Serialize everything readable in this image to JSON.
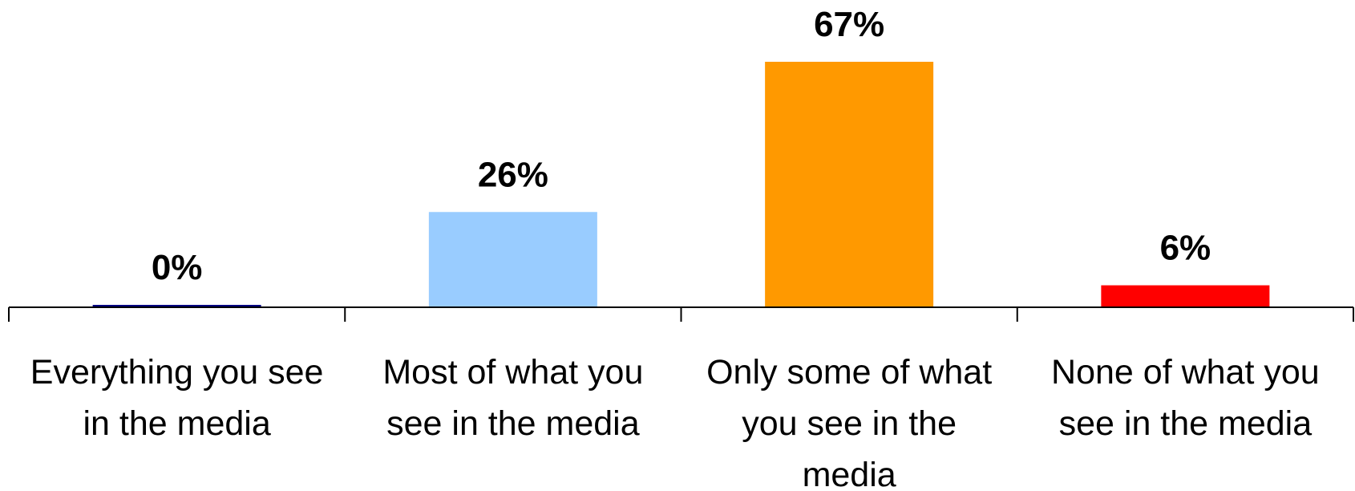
{
  "chart_data": {
    "type": "bar",
    "categories": [
      [
        "Everything you see",
        "in the media"
      ],
      [
        "Most of what you",
        "see in the media"
      ],
      [
        "Only some of what",
        "you see in the",
        "media"
      ],
      [
        "None of what you",
        "see in the media"
      ]
    ],
    "values": [
      0,
      26,
      67,
      6
    ],
    "value_labels": [
      "0%",
      "26%",
      "67%",
      "6%"
    ],
    "colors": [
      "#000080",
      "#99CCFF",
      "#FF9900",
      "#FF0000"
    ],
    "ylim": [
      0,
      67
    ],
    "grid": false,
    "legend": "none"
  }
}
